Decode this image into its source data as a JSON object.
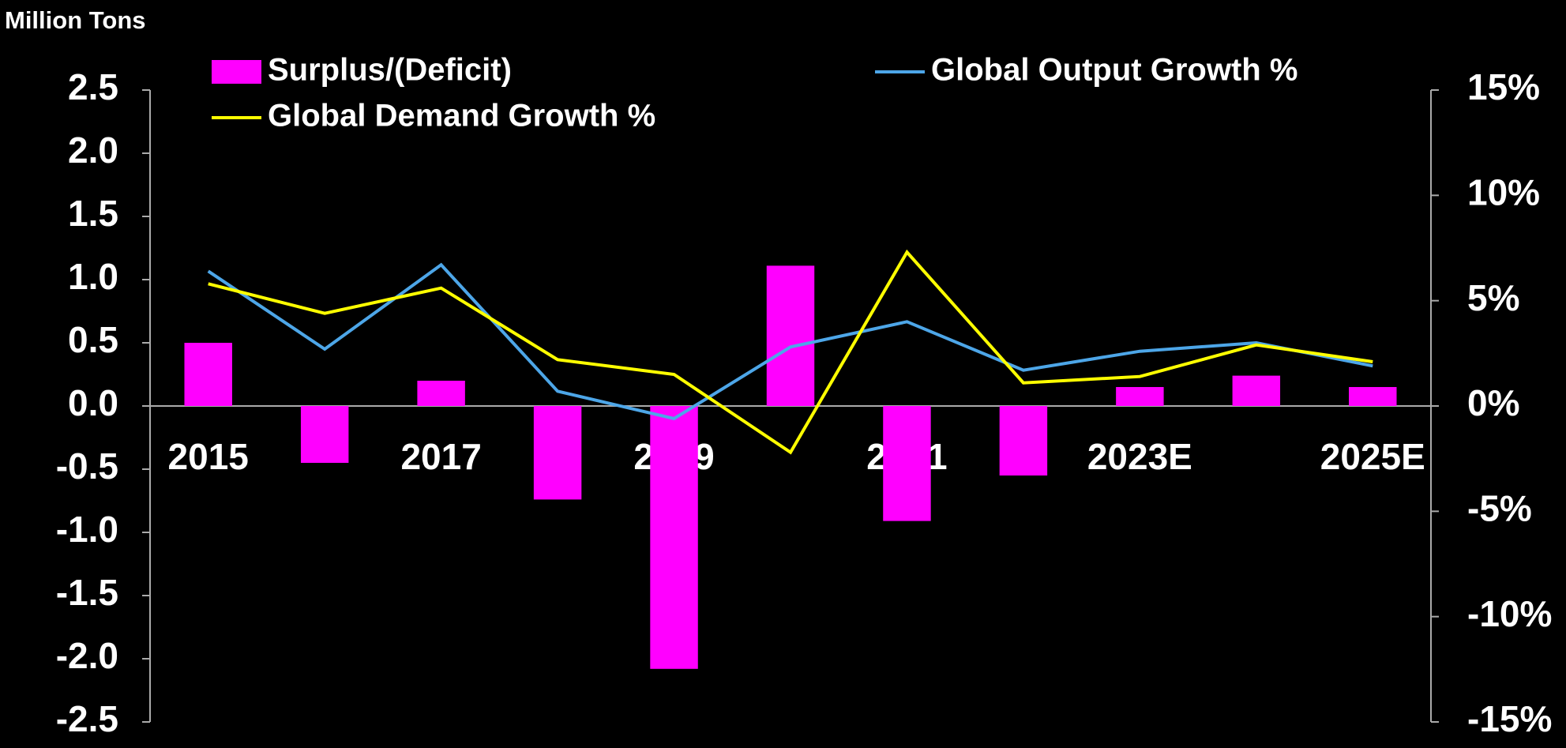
{
  "chart_data": {
    "type": "bar",
    "y_axis_label": "Million Tons",
    "categories": [
      "2015",
      null,
      "2017",
      null,
      "2019",
      null,
      "2021",
      null,
      "2023E",
      null,
      "2025E"
    ],
    "series": [
      {
        "name": "Surplus/(Deficit)",
        "type": "bar",
        "color": "#ff00ff",
        "values": [
          0.5,
          -0.45,
          0.2,
          -0.74,
          -2.08,
          1.11,
          -0.91,
          -0.55,
          0.15,
          0.24,
          0.15
        ]
      },
      {
        "name": "Global Output Growth %",
        "type": "line",
        "axis": "y2",
        "color": "#4da6e8",
        "values": [
          6.4,
          2.7,
          6.7,
          0.7,
          -0.6,
          2.8,
          4.0,
          1.7,
          2.6,
          3.0,
          1.9
        ]
      },
      {
        "name": "Global Demand Growth %",
        "type": "line",
        "axis": "y2",
        "color": "#ffff00",
        "values": [
          5.8,
          4.4,
          5.6,
          2.2,
          1.5,
          -2.2,
          7.3,
          1.1,
          1.4,
          2.9,
          2.1
        ]
      }
    ],
    "ylim": [
      -2.5,
      2.5
    ],
    "yticks": [
      2.5,
      {
        "value": 2,
        "label": "2.0"
      },
      1.5,
      {
        "value": 1,
        "label": "1.0"
      },
      0.5,
      {
        "value": 0,
        "label": "0.0"
      },
      -0.5,
      {
        "value": -1,
        "label": "-1.0"
      },
      -1.5,
      {
        "value": -2,
        "label": "-2.0"
      },
      -2.5
    ],
    "y2lim": [
      -15,
      15
    ],
    "y2ticks": [
      {
        "value": 15,
        "label": "15%"
      },
      {
        "value": 10,
        "label": "10%"
      },
      {
        "value": 5,
        "label": "5%"
      },
      {
        "value": 0,
        "label": "0%"
      },
      {
        "value": -5,
        "label": "-5%"
      },
      {
        "value": -10,
        "label": "-10%"
      },
      {
        "value": -15,
        "label": "-15%"
      }
    ],
    "legend": "top",
    "grid": false
  }
}
